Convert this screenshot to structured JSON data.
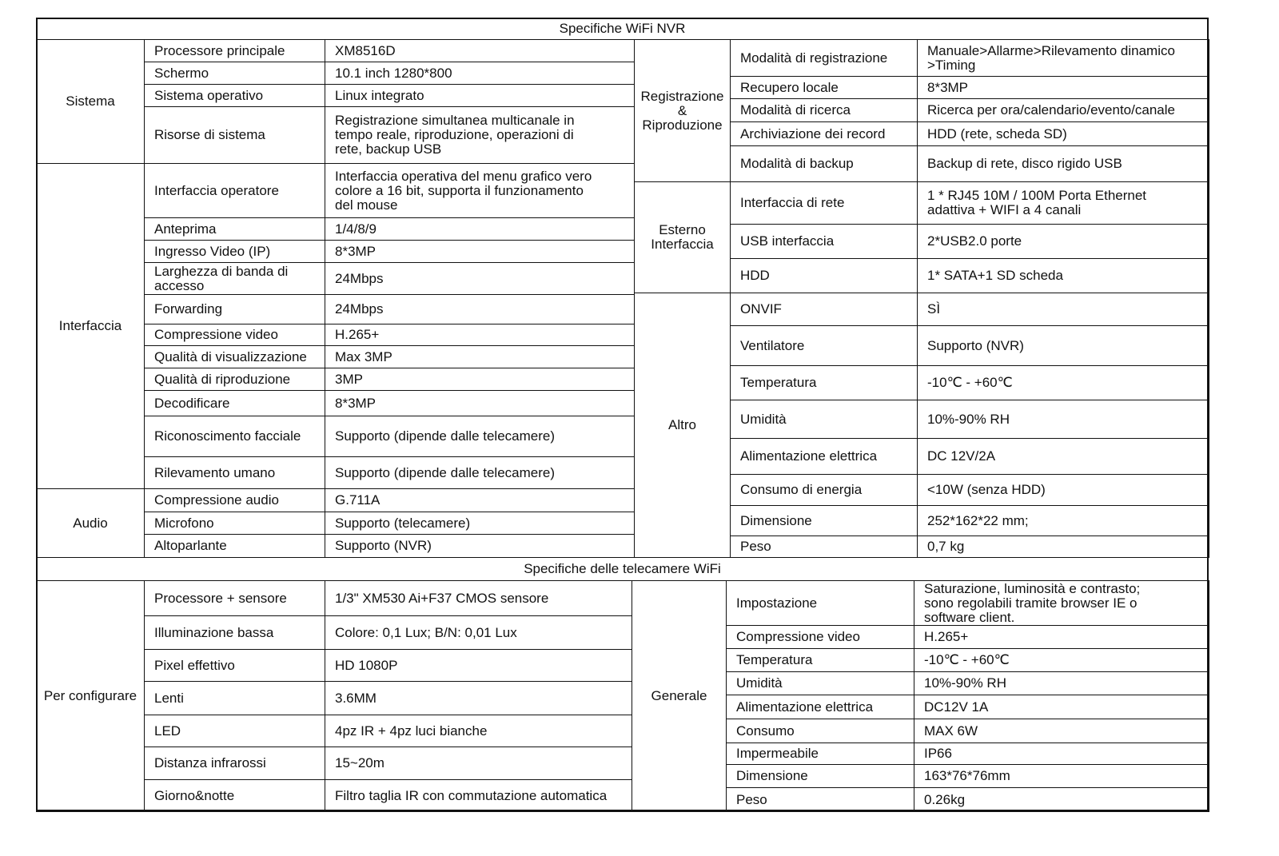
{
  "title_nvr": "Specifiche WiFi NVR",
  "title_camera": "Specifiche delle telecamere WiFi",
  "nvr": {
    "left": [
      {
        "group": "Sistema",
        "rows": [
          {
            "label": "Processore principale",
            "value": "XM8516D"
          },
          {
            "label": "Schermo",
            "value": "10.1 inch  1280*800"
          },
          {
            "label": "Sistema operativo",
            "value": "Linux integrato"
          },
          {
            "label": "Risorse di sistema",
            "value": "Registrazione simultanea multicanale in\ntempo reale, riproduzione, operazioni di\nrete, backup USB"
          }
        ]
      },
      {
        "group": "Interfaccia",
        "rows": [
          {
            "label": "Interfaccia operatore",
            "value": "Interfaccia operativa del menu grafico vero\ncolore  a 16 bit, supporta il funzionamento\ndel mouse"
          },
          {
            "label": "Anteprima",
            "value": "1/4/8/9"
          },
          {
            "label": "Ingresso Video  (IP)",
            "value": "8*3MP"
          },
          {
            "label": "Larghezza di banda di\naccesso",
            "value": "24Mbps"
          },
          {
            "label": "Forwarding",
            "value": "24Mbps"
          },
          {
            "label": "Compressione video",
            "value": "H.265+"
          },
          {
            "label": "Qualità di visualizzazione",
            "value": "Max 3MP"
          },
          {
            "label": "Qualità di riproduzione",
            "value": "3MP"
          },
          {
            "label": "Decodificare",
            "value": "8*3MP"
          },
          {
            "label": "Riconoscimento facciale",
            "value": "Supporto (dipende dalle telecamere)"
          },
          {
            "label": "Rilevamento umano",
            "value": "Supporto (dipende dalle telecamere)"
          }
        ]
      },
      {
        "group": "Audio",
        "rows": [
          {
            "label": "Compressione audio",
            "value": "G.711A"
          },
          {
            "label": "Microfono",
            "value": "Supporto (telecamere)"
          },
          {
            "label": "Altoparlante",
            "value": "Supporto (NVR)"
          }
        ]
      }
    ],
    "right": [
      {
        "group": "Registrazione\n&\nRiproduzione",
        "rows": [
          {
            "label": "Modalità di registrazione",
            "value": "Manuale>Allarme>Rilevamento dinamico\n>Timing"
          },
          {
            "label": "Recupero locale",
            "value": "8*3MP"
          },
          {
            "label": "Modalità di ricerca",
            "value": "Ricerca per ora/calendario/evento/canale"
          },
          {
            "label": "Archiviazione dei record",
            "value": "HDD (rete, scheda SD)"
          },
          {
            "label": "Modalità di backup",
            "value": "Backup di rete, disco rigido USB"
          }
        ]
      },
      {
        "group": "Esterno\nInterfaccia",
        "rows": [
          {
            "label": "Interfaccia di rete",
            "value": "1 * RJ45 10M / 100M Porta Ethernet\nadattiva + WIFI a 4 canali"
          },
          {
            "label": "USB interfaccia",
            "value": "2*USB2.0 porte"
          },
          {
            "label": "HDD",
            "value": "1* SATA+1 SD scheda"
          }
        ]
      },
      {
        "group": "Altro",
        "rows": [
          {
            "label": "ONVIF",
            "value": "SÌ"
          },
          {
            "label": "Ventilatore",
            "value": "Supporto (NVR)"
          },
          {
            "label": "Temperatura",
            "value": "-10℃ - +60℃"
          },
          {
            "label": "Umidità",
            "value": "10%-90% RH"
          },
          {
            "label": "Alimentazione elettrica",
            "value": "DC 12V/2A"
          },
          {
            "label": "Consumo di energia",
            "value": "<10W (senza HDD)"
          },
          {
            "label": "Dimensione",
            "value": "252*162*22 mm;"
          },
          {
            "label": "Peso",
            "value": "0,7 kg"
          }
        ]
      }
    ]
  },
  "camera": {
    "left": [
      {
        "group": "Per configurare",
        "rows": [
          {
            "label": "Processore + sensore",
            "value": "1/3\" XM530 Ai+F37 CMOS sensore"
          },
          {
            "label": "Illuminazione bassa",
            "value": "Colore: 0,1 Lux; B/N: 0,01 Lux"
          },
          {
            "label": "Pixel effettivo",
            "value": "HD 1080P"
          },
          {
            "label": "Lenti",
            "value": "3.6MM"
          },
          {
            "label": "LED",
            "value": "4pz IR + 4pz luci bianche"
          },
          {
            "label": "Distanza infrarossi",
            "value": "15~20m"
          },
          {
            "label": "Giorno&notte",
            "value": "Filtro taglia IR con commutazione automatica"
          }
        ]
      }
    ],
    "right": [
      {
        "group": "Generale",
        "rows": [
          {
            "label": "Impostazione",
            "value": "Saturazione, luminosità e contrasto;\nsono regolabili tramite browser IE o\nsoftware client."
          },
          {
            "label": "Compressione video",
            "value": "H.265+"
          },
          {
            "label": "Temperatura",
            "value": "-10℃ - +60℃"
          },
          {
            "label": "Umidità",
            "value": "10%-90% RH"
          },
          {
            "label": "Alimentazione elettrica",
            "value": "DC12V 1A"
          },
          {
            "label": "Consumo",
            "value": "MAX 6W"
          },
          {
            "label": "Impermeabile",
            "value": "IP66"
          },
          {
            "label": "Dimensione",
            "value": "163*76*76mm"
          },
          {
            "label": "Peso",
            "value": "0.26kg"
          }
        ]
      }
    ]
  }
}
